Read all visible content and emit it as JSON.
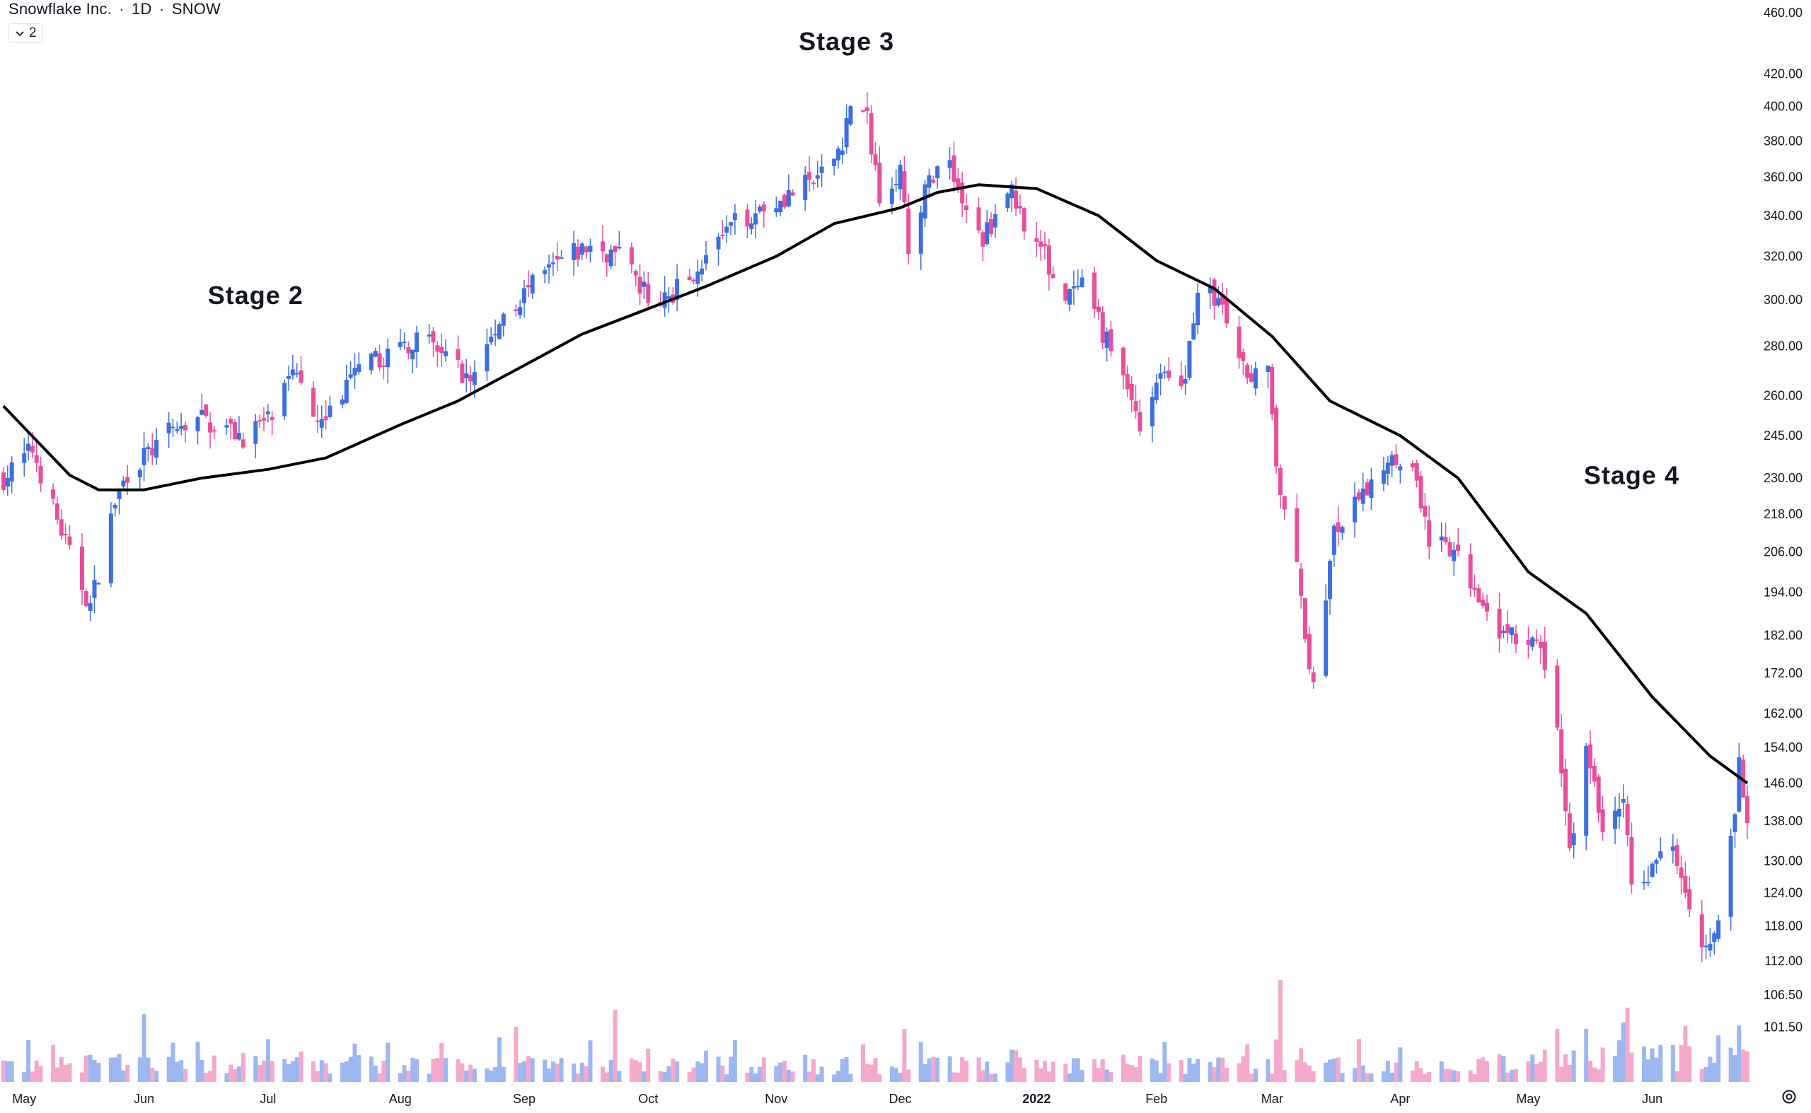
{
  "header": {
    "symbol_name": "Snowflake Inc.",
    "sep1": "·",
    "interval": "1D",
    "sep2": "·",
    "ticker": "SNOW",
    "collapse_count": "2"
  },
  "colors": {
    "up": "#3d6fe0",
    "down": "#ea4e9a",
    "up_volume": "#9db7f0",
    "down_volume": "#f4a9cc",
    "moving_average": "#000000",
    "axis_text": "#131722"
  },
  "chart_data": {
    "type": "candlestick",
    "scale": "log",
    "ylim": [
      98,
      460
    ],
    "y_ticks": [
      460,
      420,
      400,
      380,
      360,
      340,
      320,
      300,
      280,
      260,
      245,
      230,
      218,
      206,
      194,
      182,
      172,
      162,
      154,
      146,
      138,
      130,
      124,
      118,
      112,
      106.5,
      101.5
    ],
    "y_tick_labels": [
      "460.00",
      "420.00",
      "400.00",
      "380.00",
      "360.00",
      "340.00",
      "320.00",
      "300.00",
      "280.00",
      "260.00",
      "245.00",
      "230.00",
      "218.00",
      "206.00",
      "194.00",
      "182.00",
      "172.00",
      "162.00",
      "154.00",
      "146.00",
      "138.00",
      "130.00",
      "124.00",
      "118.00",
      "112.00",
      "106.50",
      "101.50"
    ],
    "x_range": [
      "2021-04-28",
      "2022-06-24"
    ],
    "x_labels": [
      {
        "date": "2021-05-03",
        "label": "May"
      },
      {
        "date": "2021-06-01",
        "label": "Jun"
      },
      {
        "date": "2021-07-01",
        "label": "Jul"
      },
      {
        "date": "2021-08-02",
        "label": "Aug"
      },
      {
        "date": "2021-09-01",
        "label": "Sep"
      },
      {
        "date": "2021-10-01",
        "label": "Oct"
      },
      {
        "date": "2021-11-01",
        "label": "Nov"
      },
      {
        "date": "2021-12-01",
        "label": "Dec"
      },
      {
        "date": "2022-01-03",
        "label": "2022",
        "bold": true
      },
      {
        "date": "2022-02-01",
        "label": "Feb"
      },
      {
        "date": "2022-03-01",
        "label": "Mar"
      },
      {
        "date": "2022-04-01",
        "label": "Apr"
      },
      {
        "date": "2022-05-02",
        "label": "May"
      },
      {
        "date": "2022-06-01",
        "label": "Jun"
      }
    ],
    "price_anchors": [
      [
        "2021-04-28",
        230
      ],
      [
        "2021-05-05",
        240
      ],
      [
        "2021-05-14",
        205
      ],
      [
        "2021-05-19",
        190
      ],
      [
        "2021-05-25",
        222
      ],
      [
        "2021-05-28",
        232
      ],
      [
        "2021-06-08",
        247
      ],
      [
        "2021-06-15",
        251
      ],
      [
        "2021-06-25",
        245
      ],
      [
        "2021-07-02",
        252
      ],
      [
        "2021-07-08",
        270
      ],
      [
        "2021-07-14",
        250
      ],
      [
        "2021-07-22",
        268
      ],
      [
        "2021-07-30",
        277
      ],
      [
        "2021-08-06",
        283
      ],
      [
        "2021-08-13",
        276
      ],
      [
        "2021-08-19",
        266
      ],
      [
        "2021-08-27",
        294
      ],
      [
        "2021-09-03",
        306
      ],
      [
        "2021-09-10",
        318
      ],
      [
        "2021-09-17",
        325
      ],
      [
        "2021-09-24",
        320
      ],
      [
        "2021-09-29",
        305
      ],
      [
        "2021-10-04",
        298
      ],
      [
        "2021-10-08",
        305
      ],
      [
        "2021-10-15",
        320
      ],
      [
        "2021-10-22",
        336
      ],
      [
        "2021-10-29",
        345
      ],
      [
        "2021-11-05",
        352
      ],
      [
        "2021-11-12",
        360
      ],
      [
        "2021-11-17",
        380
      ],
      [
        "2021-11-19",
        402
      ],
      [
        "2021-11-23",
        392
      ],
      [
        "2021-11-26",
        352
      ],
      [
        "2021-12-01",
        365
      ],
      [
        "2021-12-03",
        320
      ],
      [
        "2021-12-08",
        360
      ],
      [
        "2021-12-13",
        370
      ],
      [
        "2021-12-17",
        340
      ],
      [
        "2021-12-21",
        328
      ],
      [
        "2021-12-27",
        355
      ],
      [
        "2021-12-31",
        338
      ],
      [
        "2022-01-05",
        320
      ],
      [
        "2022-01-10",
        300
      ],
      [
        "2022-01-14",
        305
      ],
      [
        "2022-01-19",
        286
      ],
      [
        "2022-01-24",
        268
      ],
      [
        "2022-01-28",
        250
      ],
      [
        "2022-02-02",
        270
      ],
      [
        "2022-02-07",
        260
      ],
      [
        "2022-02-11",
        305
      ],
      [
        "2022-02-16",
        300
      ],
      [
        "2022-02-22",
        270
      ],
      [
        "2022-02-28",
        270
      ],
      [
        "2022-03-02",
        230
      ],
      [
        "2022-03-07",
        200
      ],
      [
        "2022-03-11",
        168
      ],
      [
        "2022-03-16",
        212
      ],
      [
        "2022-03-21",
        220
      ],
      [
        "2022-03-25",
        228
      ],
      [
        "2022-03-30",
        240
      ],
      [
        "2022-04-05",
        230
      ],
      [
        "2022-04-08",
        210
      ],
      [
        "2022-04-14",
        205
      ],
      [
        "2022-04-20",
        194
      ],
      [
        "2022-04-26",
        182
      ],
      [
        "2022-05-02",
        180
      ],
      [
        "2022-05-05",
        178
      ],
      [
        "2022-05-09",
        158
      ],
      [
        "2022-05-12",
        132
      ],
      [
        "2022-05-16",
        154
      ],
      [
        "2022-05-20",
        136
      ],
      [
        "2022-05-25",
        144
      ],
      [
        "2022-05-27",
        124
      ],
      [
        "2022-06-02",
        130
      ],
      [
        "2022-06-06",
        134
      ],
      [
        "2022-06-10",
        123
      ],
      [
        "2022-06-14",
        114
      ],
      [
        "2022-06-17",
        118
      ],
      [
        "2022-06-21",
        140
      ],
      [
        "2022-06-22",
        150
      ],
      [
        "2022-06-24",
        140
      ]
    ],
    "moving_average": [
      [
        "2021-04-28",
        256
      ],
      [
        "2021-05-14",
        231
      ],
      [
        "2021-05-21",
        226
      ],
      [
        "2021-06-01",
        226
      ],
      [
        "2021-06-15",
        230
      ],
      [
        "2021-07-01",
        233
      ],
      [
        "2021-07-15",
        237
      ],
      [
        "2021-08-02",
        249
      ],
      [
        "2021-08-16",
        258
      ],
      [
        "2021-09-01",
        272
      ],
      [
        "2021-09-15",
        285
      ],
      [
        "2021-10-01",
        296
      ],
      [
        "2021-10-15",
        306
      ],
      [
        "2021-11-01",
        320
      ],
      [
        "2021-11-15",
        336
      ],
      [
        "2021-12-01",
        344
      ],
      [
        "2021-12-10",
        352
      ],
      [
        "2021-12-20",
        356
      ],
      [
        "2022-01-03",
        354
      ],
      [
        "2022-01-18",
        340
      ],
      [
        "2022-02-01",
        318
      ],
      [
        "2022-02-15",
        305
      ],
      [
        "2022-03-01",
        284
      ],
      [
        "2022-03-15",
        258
      ],
      [
        "2022-04-01",
        245
      ],
      [
        "2022-04-15",
        230
      ],
      [
        "2022-05-02",
        200
      ],
      [
        "2022-05-16",
        188
      ],
      [
        "2022-06-01",
        166
      ],
      [
        "2022-06-15",
        152
      ],
      [
        "2022-06-24",
        146
      ]
    ],
    "volume_spikes": [
      [
        "2021-06-01",
        3.2
      ],
      [
        "2021-08-26",
        2.1
      ],
      [
        "2021-08-30",
        2.6
      ],
      [
        "2021-09-23",
        3.4
      ],
      [
        "2021-12-02",
        2.5
      ],
      [
        "2022-03-03",
        4.8
      ],
      [
        "2022-03-02",
        2.0
      ],
      [
        "2022-05-26",
        2.5
      ],
      [
        "2022-05-25",
        2.0
      ],
      [
        "2022-05-24",
        1.4
      ],
      [
        "2022-06-22",
        1.9
      ]
    ],
    "annotations": [
      {
        "text": "Stage 2",
        "date": "2021-06-28",
        "price": 298
      },
      {
        "text": "Stage 3",
        "date": "2021-11-18",
        "price": 435
      },
      {
        "text": "Stage 4",
        "date": "2022-05-27",
        "price": 228
      }
    ]
  }
}
